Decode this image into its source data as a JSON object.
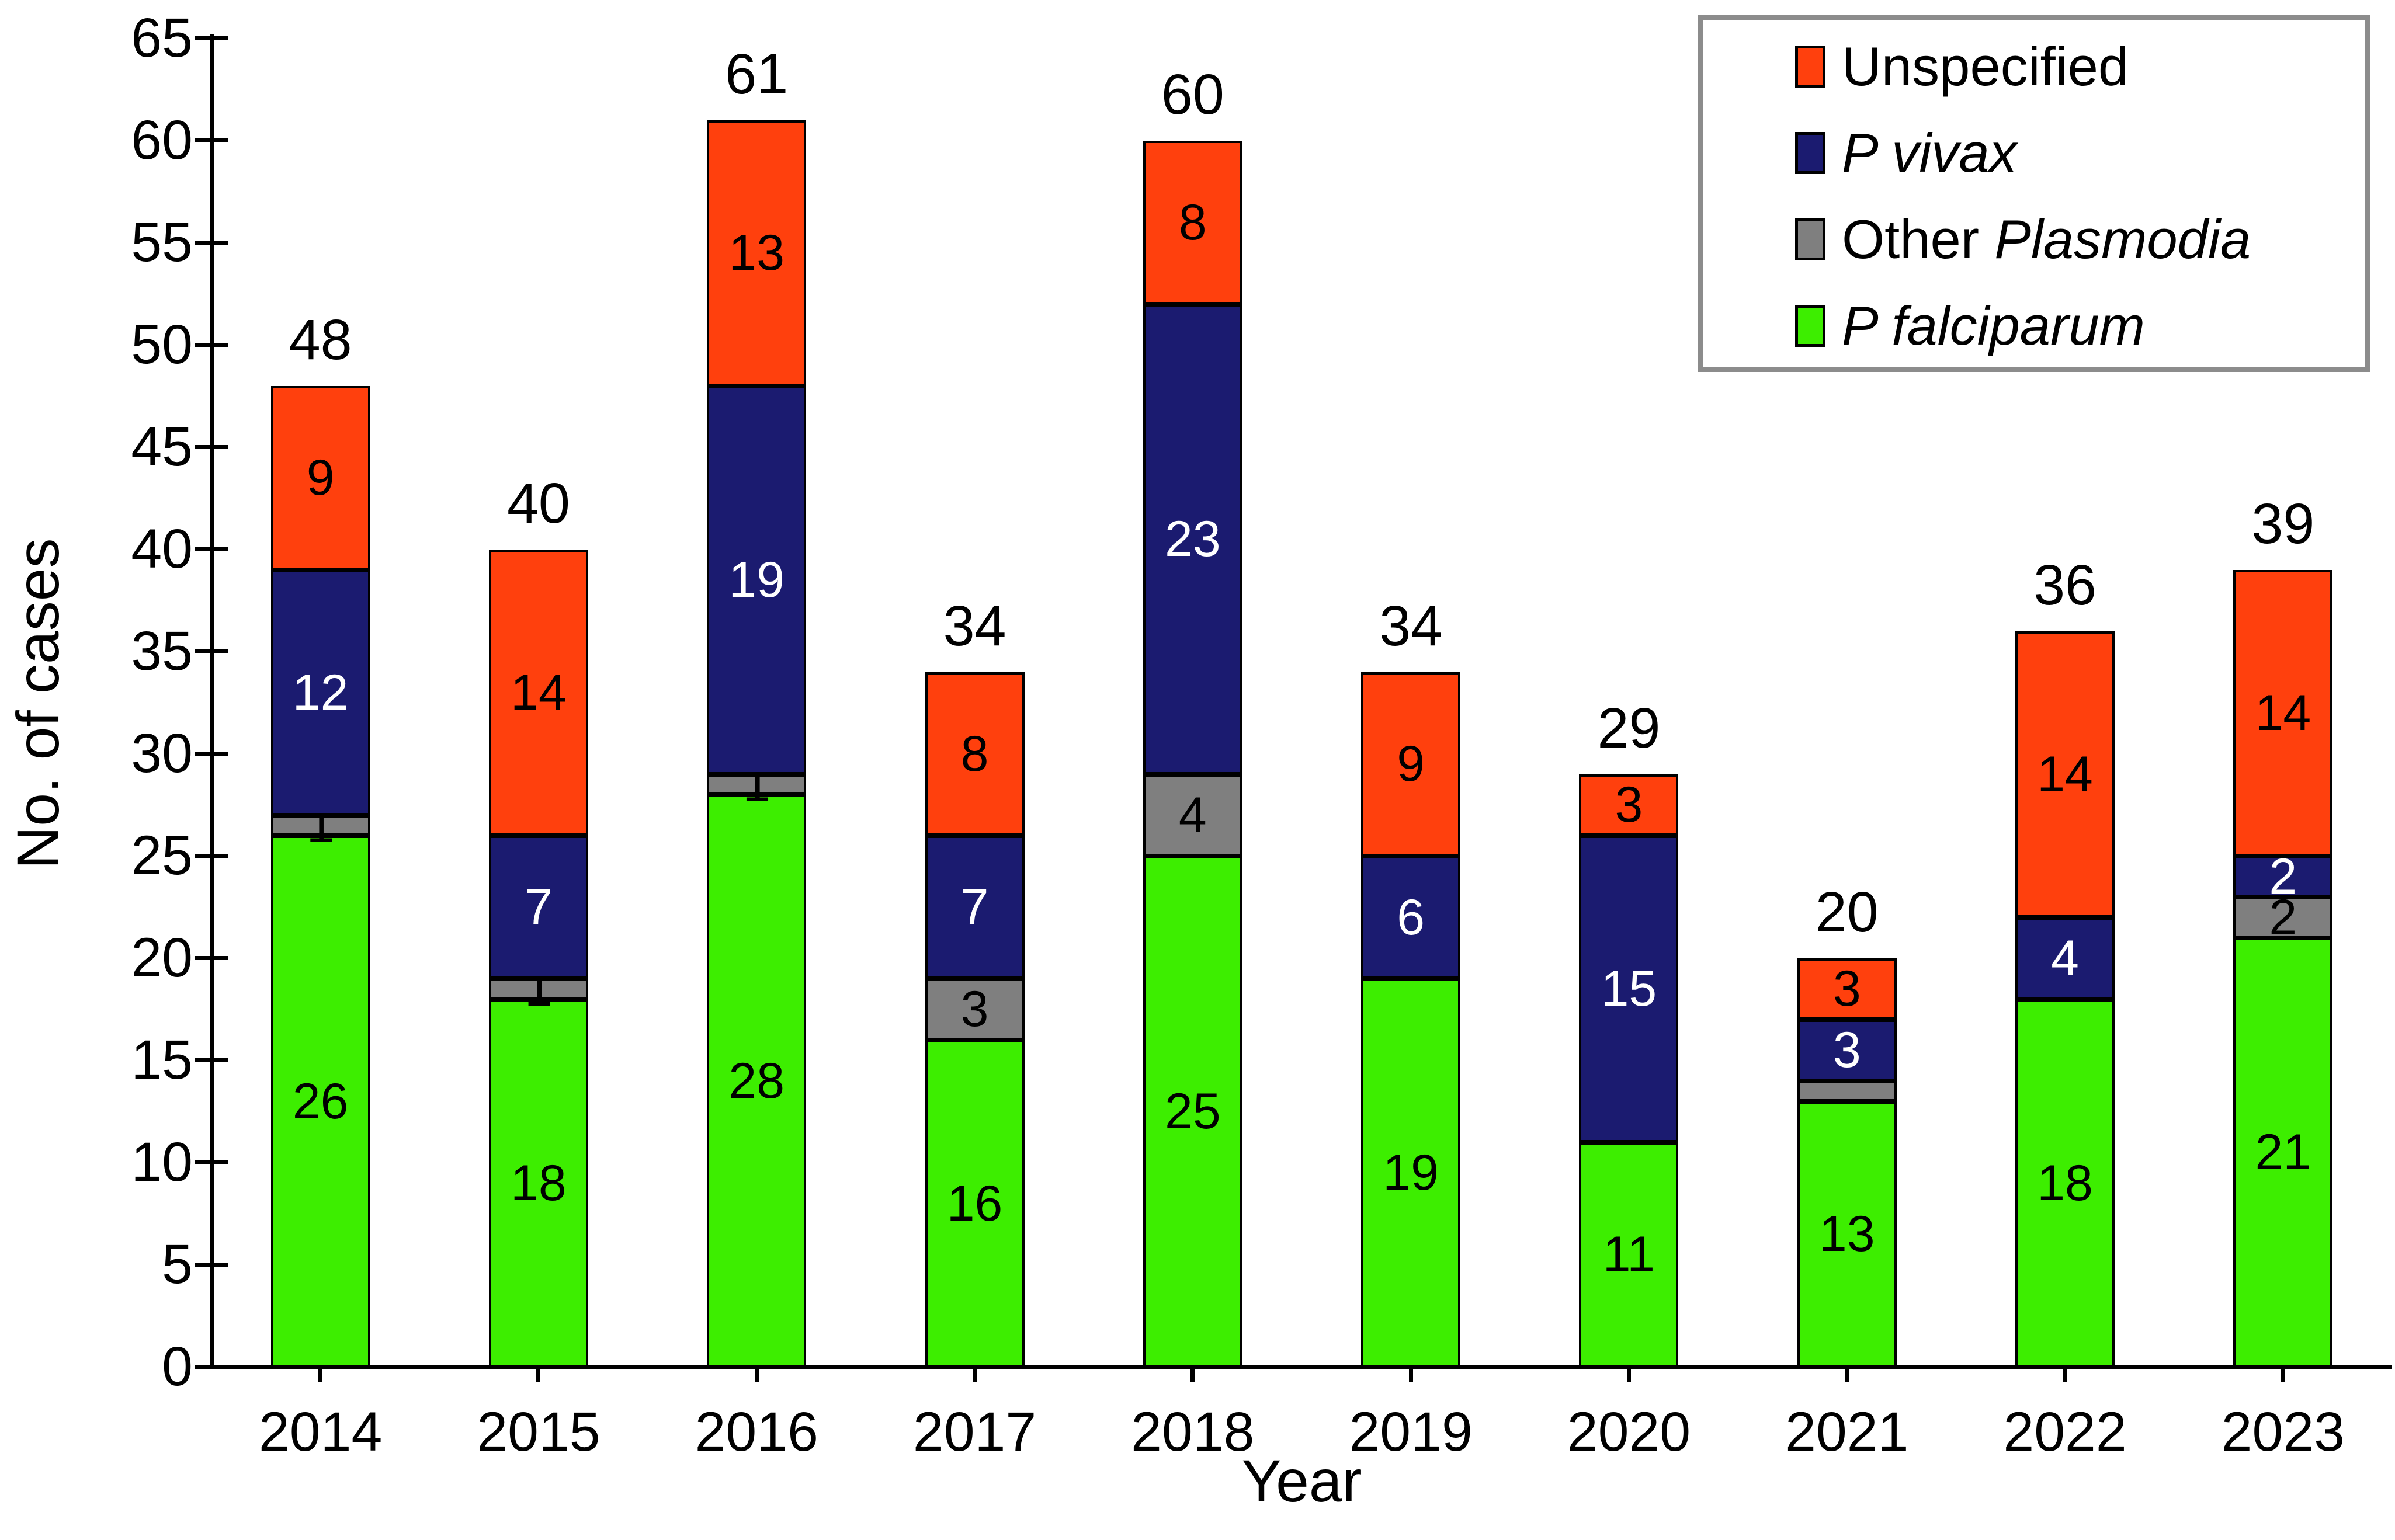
{
  "chart_data": {
    "type": "bar",
    "stacked": true,
    "xlabel": "Year",
    "ylabel": "No. of cases",
    "ylim": [
      0,
      65
    ],
    "ytick_step": 5,
    "yticks": [
      0,
      5,
      10,
      15,
      20,
      25,
      30,
      35,
      40,
      45,
      50,
      55,
      60,
      65
    ],
    "grid": false,
    "legend_position": "top-right",
    "categories": [
      "2014",
      "2015",
      "2016",
      "2017",
      "2018",
      "2019",
      "2020",
      "2021",
      "2022",
      "2023"
    ],
    "totals": [
      48,
      40,
      61,
      34,
      60,
      34,
      29,
      20,
      36,
      39
    ],
    "series": [
      {
        "id": "falciparum",
        "label_parts": [
          {
            "t": "P falciparum",
            "i": true
          }
        ],
        "color": "#3DEE00",
        "text_color": "#000000",
        "values": [
          26,
          18,
          28,
          16,
          25,
          19,
          11,
          13,
          18,
          21
        ],
        "show_value_labels": [
          true,
          true,
          true,
          true,
          true,
          true,
          true,
          true,
          true,
          true
        ]
      },
      {
        "id": "other-plasmodia",
        "label_parts": [
          {
            "t": "Other ",
            "i": false
          },
          {
            "t": "Plasmodia",
            "i": true
          }
        ],
        "color": "#7F7F7F",
        "text_color": "#000000",
        "values": [
          1,
          1,
          1,
          3,
          4,
          0,
          0,
          1,
          0,
          2
        ],
        "show_value_labels": [
          true,
          true,
          true,
          true,
          true,
          true,
          true,
          false,
          true,
          true
        ]
      },
      {
        "id": "vivax",
        "label_parts": [
          {
            "t": "P vivax",
            "i": true
          }
        ],
        "color": "#1B1B70",
        "text_color": "#FFFFFF",
        "values": [
          12,
          7,
          19,
          7,
          23,
          6,
          15,
          3,
          4,
          2
        ],
        "show_value_labels": [
          true,
          true,
          true,
          true,
          true,
          true,
          true,
          true,
          true,
          true
        ]
      },
      {
        "id": "unspecified",
        "label_parts": [
          {
            "t": "Unspecified",
            "i": false
          }
        ],
        "color": "#FF400D",
        "text_color": "#000000",
        "values": [
          9,
          14,
          13,
          8,
          8,
          9,
          3,
          3,
          14,
          14
        ],
        "show_value_labels": [
          true,
          true,
          true,
          true,
          true,
          true,
          true,
          true,
          true,
          true
        ]
      }
    ],
    "legend_order": [
      "unspecified",
      "vivax",
      "other-plasmodia",
      "falciparum"
    ],
    "colors": {
      "axis": "#000000",
      "legend_border": "#8c8c8c",
      "background": "#ffffff"
    }
  }
}
